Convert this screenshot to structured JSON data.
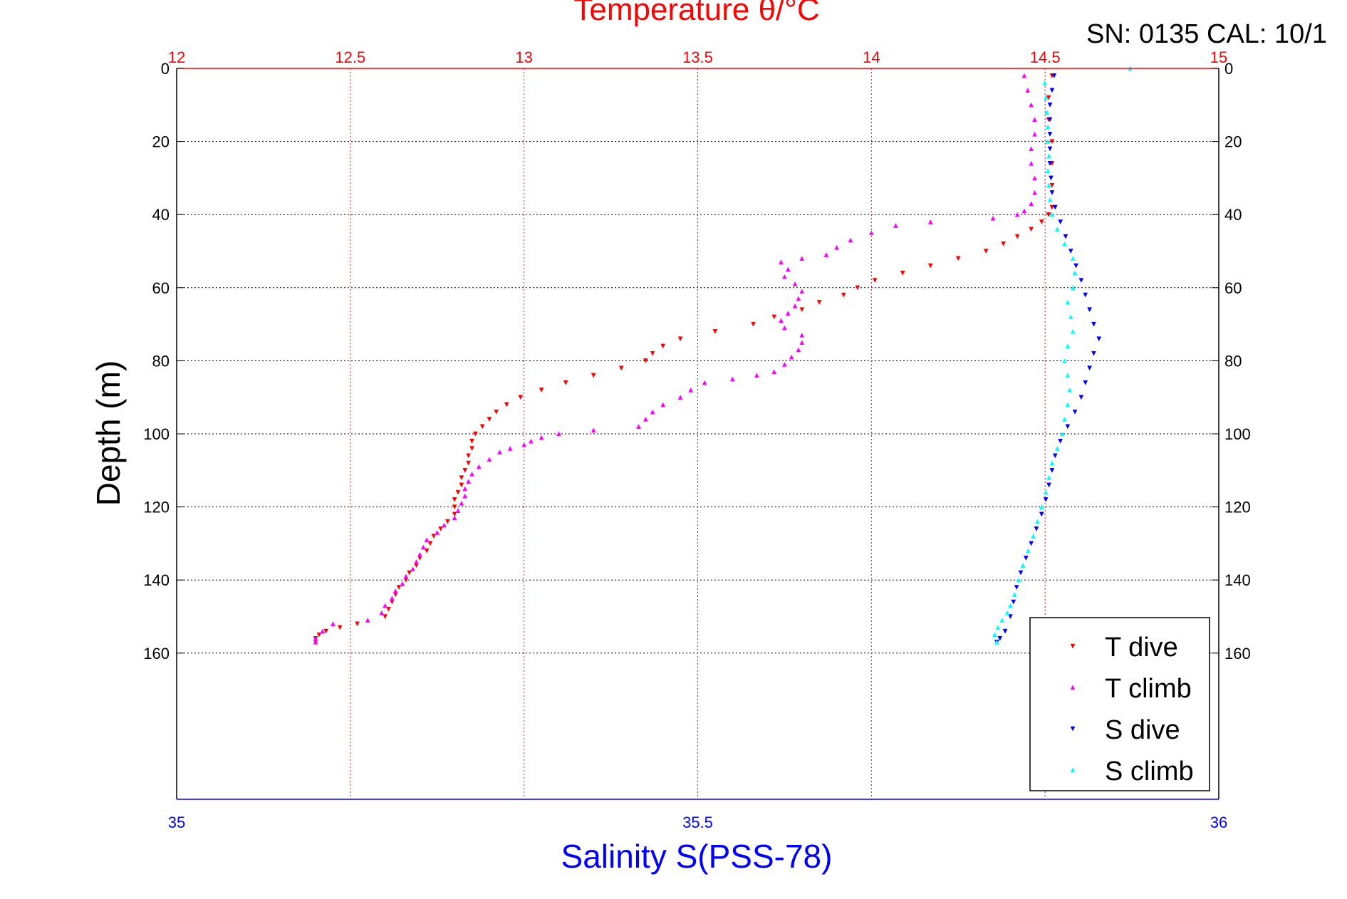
{
  "chart_data": {
    "type": "scatter",
    "title": "Temperature θ/°C",
    "top_right_label": "SN: 0135  CAL: 10/1",
    "ylabel": "Depth (m)",
    "xlabel_bottom": "Salinity S(PSS-78)",
    "ylim": [
      0,
      200
    ],
    "y_inverted": true,
    "y_ticks": [
      "0",
      "20",
      "40",
      "60",
      "80",
      "100",
      "120",
      "140",
      "160"
    ],
    "x_top": {
      "label": "Temperature θ/°C",
      "range": [
        12,
        15
      ],
      "ticks": [
        "12",
        "12.5",
        "13",
        "13.5",
        "14",
        "14.5",
        "15"
      ]
    },
    "x_bottom": {
      "label": "Salinity S(PSS-78)",
      "range": [
        35,
        36
      ],
      "ticks": [
        "35",
        "35.5",
        "36"
      ]
    },
    "grid": true,
    "legend_position": "bottom-right",
    "colors": {
      "top_axis": "#ff0000",
      "bottom_axis": "#0000ff",
      "grid": "#000000"
    },
    "series": [
      {
        "name": "T dive",
        "axis": "top",
        "color": "#ff0000",
        "marker": "triangle-down",
        "points": [
          [
            14.52,
            2
          ],
          [
            14.51,
            8
          ],
          [
            14.51,
            14
          ],
          [
            14.52,
            20
          ],
          [
            14.52,
            26
          ],
          [
            14.52,
            32
          ],
          [
            14.52,
            38
          ],
          [
            14.51,
            40
          ],
          [
            14.49,
            42
          ],
          [
            14.46,
            44
          ],
          [
            14.42,
            46
          ],
          [
            14.38,
            48
          ],
          [
            14.33,
            50
          ],
          [
            14.25,
            52
          ],
          [
            14.17,
            54
          ],
          [
            14.09,
            56
          ],
          [
            14.01,
            58
          ],
          [
            13.96,
            60
          ],
          [
            13.92,
            62
          ],
          [
            13.85,
            64
          ],
          [
            13.8,
            66
          ],
          [
            13.72,
            68
          ],
          [
            13.66,
            70
          ],
          [
            13.55,
            72
          ],
          [
            13.45,
            74
          ],
          [
            13.4,
            76
          ],
          [
            13.37,
            78
          ],
          [
            13.35,
            80
          ],
          [
            13.28,
            82
          ],
          [
            13.2,
            84
          ],
          [
            13.12,
            86
          ],
          [
            13.05,
            88
          ],
          [
            12.99,
            90
          ],
          [
            12.95,
            92
          ],
          [
            12.92,
            94
          ],
          [
            12.9,
            96
          ],
          [
            12.88,
            98
          ],
          [
            12.86,
            100
          ],
          [
            12.85,
            102
          ],
          [
            12.85,
            104
          ],
          [
            12.84,
            106
          ],
          [
            12.84,
            108
          ],
          [
            12.83,
            110
          ],
          [
            12.82,
            112
          ],
          [
            12.82,
            114
          ],
          [
            12.81,
            116
          ],
          [
            12.8,
            118
          ],
          [
            12.8,
            120
          ],
          [
            12.8,
            122
          ],
          [
            12.78,
            124
          ],
          [
            12.76,
            126
          ],
          [
            12.74,
            128
          ],
          [
            12.73,
            130
          ],
          [
            12.72,
            132
          ],
          [
            12.7,
            134
          ],
          [
            12.69,
            136
          ],
          [
            12.67,
            138
          ],
          [
            12.66,
            140
          ],
          [
            12.64,
            142
          ],
          [
            12.63,
            144
          ],
          [
            12.62,
            146
          ],
          [
            12.61,
            148
          ],
          [
            12.6,
            150
          ],
          [
            12.52,
            152
          ],
          [
            12.47,
            153
          ],
          [
            12.43,
            154
          ],
          [
            12.41,
            155
          ],
          [
            12.4,
            156
          ],
          [
            12.4,
            157
          ]
        ]
      },
      {
        "name": "T climb",
        "axis": "top",
        "color": "#ff00ff",
        "marker": "triangle-up",
        "points": [
          [
            12.4,
            157
          ],
          [
            12.4,
            156
          ],
          [
            12.42,
            154
          ],
          [
            12.45,
            152
          ],
          [
            12.55,
            151
          ],
          [
            12.59,
            149
          ],
          [
            12.6,
            147
          ],
          [
            12.62,
            145
          ],
          [
            12.63,
            143
          ],
          [
            12.65,
            141
          ],
          [
            12.66,
            139
          ],
          [
            12.68,
            137
          ],
          [
            12.69,
            135
          ],
          [
            12.7,
            133
          ],
          [
            12.71,
            131
          ],
          [
            12.72,
            129
          ],
          [
            12.75,
            127
          ],
          [
            12.77,
            125
          ],
          [
            12.8,
            123
          ],
          [
            12.81,
            121
          ],
          [
            12.82,
            119
          ],
          [
            12.83,
            117
          ],
          [
            12.83,
            115
          ],
          [
            12.84,
            113
          ],
          [
            12.85,
            111
          ],
          [
            12.87,
            109
          ],
          [
            12.9,
            107
          ],
          [
            12.93,
            105
          ],
          [
            12.96,
            104
          ],
          [
            13.0,
            103
          ],
          [
            13.02,
            102
          ],
          [
            13.05,
            101
          ],
          [
            13.1,
            100
          ],
          [
            13.2,
            99
          ],
          [
            13.33,
            98
          ],
          [
            13.35,
            96
          ],
          [
            13.37,
            94
          ],
          [
            13.4,
            92
          ],
          [
            13.45,
            90
          ],
          [
            13.48,
            88
          ],
          [
            13.52,
            86
          ],
          [
            13.6,
            85
          ],
          [
            13.67,
            84
          ],
          [
            13.72,
            83
          ],
          [
            13.75,
            81
          ],
          [
            13.77,
            79
          ],
          [
            13.79,
            77
          ],
          [
            13.8,
            75
          ],
          [
            13.8,
            73
          ],
          [
            13.75,
            71
          ],
          [
            13.74,
            69
          ],
          [
            13.76,
            67
          ],
          [
            13.78,
            65
          ],
          [
            13.79,
            63
          ],
          [
            13.8,
            61
          ],
          [
            13.78,
            59
          ],
          [
            13.75,
            57
          ],
          [
            13.76,
            55
          ],
          [
            13.74,
            53
          ],
          [
            13.8,
            52
          ],
          [
            13.87,
            51
          ],
          [
            13.9,
            49
          ],
          [
            13.94,
            47
          ],
          [
            14.0,
            45
          ],
          [
            14.07,
            43
          ],
          [
            14.17,
            42
          ],
          [
            14.35,
            41
          ],
          [
            14.42,
            40
          ],
          [
            14.44,
            39
          ],
          [
            14.46,
            37
          ],
          [
            14.47,
            34
          ],
          [
            14.47,
            30
          ],
          [
            14.46,
            26
          ],
          [
            14.46,
            22
          ],
          [
            14.47,
            18
          ],
          [
            14.47,
            14
          ],
          [
            14.46,
            10
          ],
          [
            14.45,
            6
          ],
          [
            14.44,
            2
          ]
        ]
      },
      {
        "name": "S dive",
        "axis": "bottom",
        "color": "#0000ff",
        "marker": "triangle-down",
        "points": [
          [
            35.842,
            2
          ],
          [
            35.84,
            6
          ],
          [
            35.838,
            10
          ],
          [
            35.838,
            14
          ],
          [
            35.838,
            18
          ],
          [
            35.838,
            22
          ],
          [
            35.838,
            26
          ],
          [
            35.839,
            30
          ],
          [
            35.84,
            34
          ],
          [
            35.843,
            38
          ],
          [
            35.848,
            42
          ],
          [
            35.853,
            46
          ],
          [
            35.858,
            50
          ],
          [
            35.863,
            54
          ],
          [
            35.868,
            58
          ],
          [
            35.872,
            62
          ],
          [
            35.876,
            66
          ],
          [
            35.88,
            70
          ],
          [
            35.885,
            74
          ],
          [
            35.88,
            78
          ],
          [
            35.876,
            82
          ],
          [
            35.872,
            86
          ],
          [
            35.868,
            90
          ],
          [
            35.862,
            94
          ],
          [
            35.855,
            98
          ],
          [
            35.848,
            102
          ],
          [
            35.843,
            106
          ],
          [
            35.84,
            110
          ],
          [
            35.837,
            114
          ],
          [
            35.834,
            118
          ],
          [
            35.83,
            122
          ],
          [
            35.825,
            126
          ],
          [
            35.82,
            130
          ],
          [
            35.815,
            134
          ],
          [
            35.81,
            138
          ],
          [
            35.806,
            142
          ],
          [
            35.803,
            146
          ],
          [
            35.8,
            150
          ],
          [
            35.795,
            154
          ],
          [
            35.79,
            156
          ],
          [
            35.787,
            157
          ]
        ]
      },
      {
        "name": "S climb",
        "axis": "bottom",
        "color": "#00ffff",
        "marker": "triangle-up",
        "points": [
          [
            35.915,
            0
          ],
          [
            35.787,
            157
          ],
          [
            35.785,
            155
          ],
          [
            35.788,
            153
          ],
          [
            35.792,
            151
          ],
          [
            35.797,
            149
          ],
          [
            35.8,
            147
          ],
          [
            35.804,
            144
          ],
          [
            35.808,
            140
          ],
          [
            35.812,
            136
          ],
          [
            35.817,
            132
          ],
          [
            35.822,
            128
          ],
          [
            35.826,
            124
          ],
          [
            35.83,
            120
          ],
          [
            35.834,
            116
          ],
          [
            35.837,
            112
          ],
          [
            35.84,
            108
          ],
          [
            35.845,
            104
          ],
          [
            35.85,
            100
          ],
          [
            35.852,
            96
          ],
          [
            35.855,
            92
          ],
          [
            35.857,
            88
          ],
          [
            35.855,
            84
          ],
          [
            35.852,
            80
          ],
          [
            35.855,
            76
          ],
          [
            35.86,
            72
          ],
          [
            35.858,
            68
          ],
          [
            35.855,
            64
          ],
          [
            35.86,
            60
          ],
          [
            35.862,
            56
          ],
          [
            35.86,
            52
          ],
          [
            35.852,
            48
          ],
          [
            35.845,
            44
          ],
          [
            35.84,
            40
          ],
          [
            35.838,
            36
          ],
          [
            35.837,
            32
          ],
          [
            35.836,
            28
          ],
          [
            35.837,
            24
          ],
          [
            35.836,
            20
          ],
          [
            35.836,
            16
          ],
          [
            35.835,
            12
          ],
          [
            35.834,
            8
          ],
          [
            35.833,
            4
          ]
        ]
      }
    ]
  }
}
